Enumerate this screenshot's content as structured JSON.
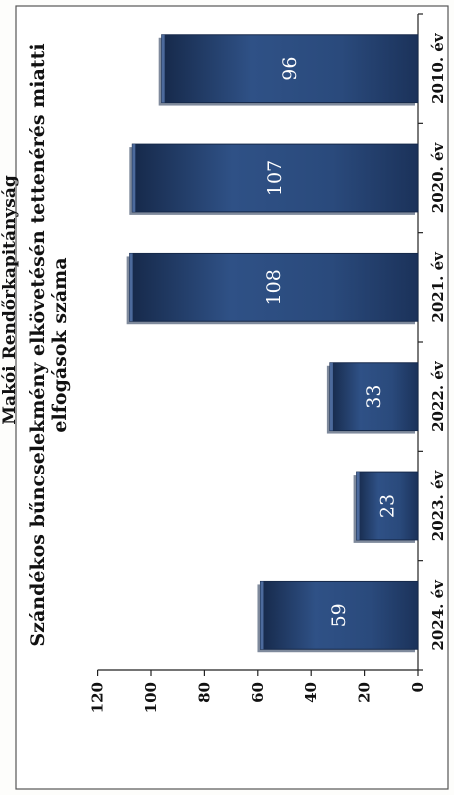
{
  "header": {
    "text": "Makói Rendőrkapitányság"
  },
  "chart_data": {
    "type": "bar",
    "title": "Szándékos bűncselekmény elkövetésén tettenérés miatti elfogások száma",
    "title_lines": [
      "Szándékos bűncselekmény elkövetésén tettenérés miatti",
      "elfogások száma"
    ],
    "categories": [
      "2010. év",
      "2020. év",
      "2021. év",
      "2022. év",
      "2023. év",
      "2024. év"
    ],
    "values": [
      96,
      107,
      108,
      33,
      23,
      59
    ],
    "ylim": [
      0,
      120
    ],
    "yticks": [
      "0",
      "20",
      "40",
      "60",
      "80",
      "100",
      "120"
    ],
    "xlabel": "",
    "ylabel": "",
    "grid": false,
    "orientation": "rotated-90-clockwise",
    "colors": {
      "bar": "#2a4a7c",
      "bar_dark": "#16294a",
      "bar_light": "#5a7bb0"
    }
  }
}
